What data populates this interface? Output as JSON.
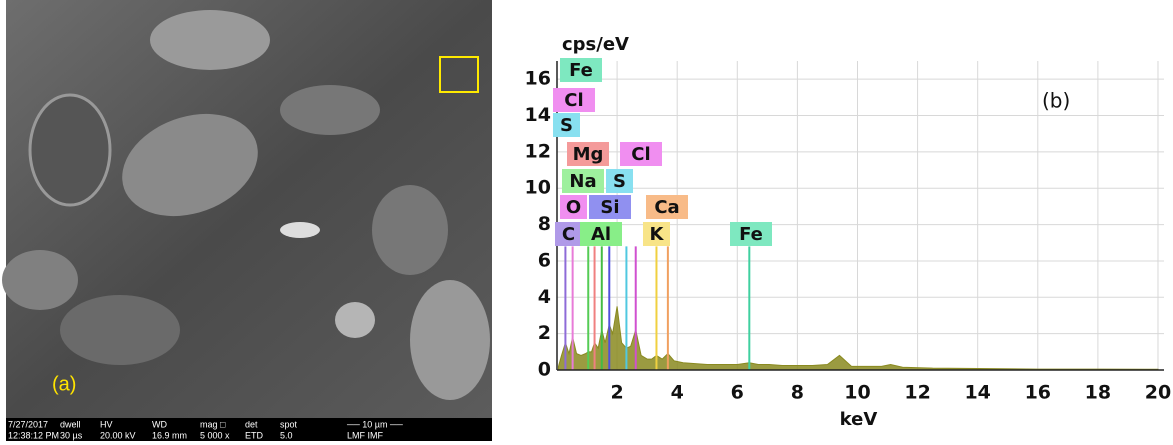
{
  "sem_image": {
    "label": "(a)",
    "info": [
      [
        "7/27/2017",
        "12:38:12 PM"
      ],
      [
        "dwell",
        "30 µs"
      ],
      [
        "HV",
        "20.00 kV"
      ],
      [
        "WD",
        "16.9 mm"
      ],
      [
        "mag □",
        "5 000 x"
      ],
      [
        "det",
        "ETD"
      ],
      [
        "spot",
        "5.0"
      ],
      [
        "── 10 µm ──",
        "LMF IMF"
      ]
    ]
  },
  "chart_data": {
    "type": "area",
    "y_label": "cps/eV",
    "x_label": "keV",
    "panel_label": "(b)",
    "x": [
      0.05,
      0.15,
      0.28,
      0.4,
      0.52,
      0.65,
      0.8,
      0.95,
      1.04,
      1.15,
      1.25,
      1.37,
      1.49,
      1.6,
      1.74,
      1.85,
      2.0,
      2.15,
      2.31,
      2.45,
      2.62,
      2.8,
      3.0,
      3.15,
      3.31,
      3.5,
      3.69,
      3.9,
      4.2,
      4.6,
      5.0,
      5.5,
      6.0,
      6.4,
      6.7,
      7.06,
      7.5,
      8.0,
      8.5,
      9.0,
      9.4,
      9.8,
      10.3,
      10.8,
      11.1,
      11.5,
      12.5,
      14,
      16,
      18,
      20
    ],
    "series": [
      {
        "color": "#8a8a20",
        "values": [
          0.2,
          0.8,
          1.5,
          0.9,
          1.8,
          0.9,
          0.8,
          0.9,
          1.0,
          1.0,
          1.5,
          1.2,
          2.2,
          1.5,
          2.5,
          2.0,
          3.5,
          1.5,
          1.2,
          1.3,
          2.2,
          0.8,
          0.6,
          0.6,
          0.8,
          0.6,
          0.9,
          0.5,
          0.4,
          0.35,
          0.3,
          0.3,
          0.3,
          0.4,
          0.3,
          0.3,
          0.25,
          0.25,
          0.25,
          0.3,
          0.8,
          0.2,
          0.2,
          0.2,
          0.3,
          0.15,
          0.1,
          0.08,
          0.05,
          0.05,
          0.04
        ]
      }
    ],
    "peaks": [
      {
        "x": 0.28,
        "y": 6.8,
        "color": "#8e6bd8"
      },
      {
        "x": 0.52,
        "y": 6.8,
        "color": "#e87bd8"
      },
      {
        "x": 1.04,
        "y": 6.8,
        "color": "#55cc55"
      },
      {
        "x": 1.25,
        "y": 6.8,
        "color": "#f08080"
      },
      {
        "x": 1.49,
        "y": 6.8,
        "color": "#44bb44"
      },
      {
        "x": 1.74,
        "y": 6.8,
        "color": "#5050dd"
      },
      {
        "x": 2.31,
        "y": 6.8,
        "color": "#50c8e0"
      },
      {
        "x": 2.62,
        "y": 6.8,
        "color": "#d050d0"
      },
      {
        "x": 3.31,
        "y": 6.8,
        "color": "#f0d040"
      },
      {
        "x": 3.69,
        "y": 6.8,
        "color": "#f0a060"
      },
      {
        "x": 6.4,
        "y": 6.8,
        "color": "#40d0a0"
      }
    ],
    "annotations": [
      {
        "text": "Fe",
        "color": "#7ee8c0"
      },
      {
        "text": "Cl",
        "color": "#f08ef0"
      },
      {
        "text": "S",
        "color": "#88e0f0"
      },
      {
        "text": "Mg",
        "color": "#f49a9a"
      },
      {
        "text": "Cl",
        "color": "#f08ef0"
      },
      {
        "text": "Na",
        "color": "#9ef09e"
      },
      {
        "text": "S",
        "color": "#88e0f0"
      },
      {
        "text": "O",
        "color": "#f08ef0"
      },
      {
        "text": "Si",
        "color": "#9090f0"
      },
      {
        "text": "Ca",
        "color": "#f8bb88"
      },
      {
        "text": "C",
        "color": "#b09ae8"
      },
      {
        "text": "Al",
        "color": "#88ee88"
      },
      {
        "text": "K",
        "color": "#f8e488"
      },
      {
        "text": "Fe",
        "color": "#7ee8c0"
      }
    ],
    "xlim": [
      0,
      20.2
    ],
    "ylim": [
      0,
      17
    ],
    "xticks": [
      2,
      4,
      6,
      8,
      10,
      12,
      14,
      16,
      18,
      20
    ],
    "yticks": [
      0,
      2,
      4,
      6,
      8,
      10,
      12,
      14,
      16
    ],
    "grid": true
  }
}
